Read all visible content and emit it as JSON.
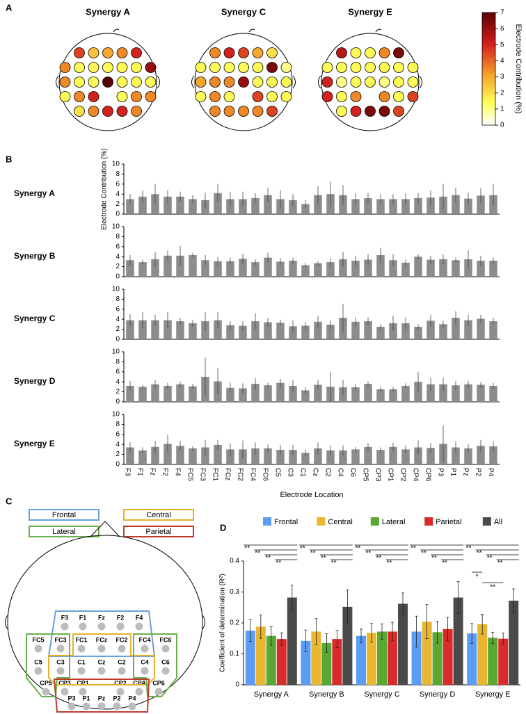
{
  "chart_data": [
    {
      "type": "topomap",
      "panel_label": "A",
      "panels": [
        {
          "title": "Synergy A",
          "values": [
            4.5,
            2.5,
            3,
            3.5,
            5,
            3.5,
            1.5,
            1.5,
            1.5,
            1.5,
            1.5,
            6,
            3.5,
            1.5,
            1.5,
            7,
            1.5,
            1.5,
            1.5,
            1.5,
            3.5,
            5,
            1.5,
            3.5,
            3.5,
            2,
            3.5,
            5,
            5,
            3.5
          ]
        },
        {
          "title": "Synergy C",
          "values": [
            3.5,
            5,
            4.5,
            3,
            2,
            1.5,
            1.5,
            1.5,
            1.5,
            1.5,
            6.5,
            1,
            3,
            3.5,
            3.5,
            6,
            1.5,
            1.5,
            1.5,
            1.5,
            3.5,
            1.5,
            4.5,
            1.5,
            1.5,
            3.5,
            3.5,
            3.5,
            3.5,
            4.5
          ]
        },
        {
          "title": "Synergy E",
          "values": [
            5.5,
            1.5,
            1.5,
            3.5,
            6.5,
            1.5,
            1.5,
            1.5,
            1.5,
            1.5,
            1.5,
            1.5,
            5,
            1,
            1.5,
            1.5,
            1,
            1.5,
            1.5,
            5,
            1.5,
            3.5,
            3.5,
            1.5,
            4.5,
            1.5,
            5,
            6.5,
            6.5,
            4.5
          ]
        }
      ],
      "clim": [
        0,
        7
      ],
      "cticks": [
        0,
        1,
        2,
        3,
        4,
        5,
        6,
        7
      ],
      "colorbar_label": "Electrode Contribution (%)"
    },
    {
      "type": "bar",
      "panel_label": "B",
      "y_label": "Electrode Contribution (%)",
      "x_label": "Electrode Location",
      "categories": [
        "F3",
        "F1",
        "Fz",
        "F2",
        "F4",
        "FC5",
        "FC3",
        "FC1",
        "FCz",
        "FC2",
        "FC4",
        "FC6",
        "C5",
        "C3",
        "C1",
        "Cz",
        "C2",
        "C4",
        "C6",
        "CP5",
        "CP3",
        "CP1",
        "CP2",
        "CP4",
        "CP6",
        "P3",
        "P1",
        "Pz",
        "P2",
        "P4"
      ],
      "color": "#8c8c8c",
      "ylim": [
        0,
        10
      ],
      "yticks": [
        0,
        2,
        4,
        6,
        8,
        10
      ],
      "panels": [
        {
          "name": "Synergy A",
          "values": [
            3,
            3.5,
            4,
            3.5,
            3.5,
            3,
            2.8,
            4.2,
            3,
            3,
            3.2,
            3.8,
            3,
            2.8,
            2,
            3.8,
            4,
            3.8,
            3,
            3.2,
            3,
            3,
            3,
            3.2,
            3.3,
            3.5,
            3.8,
            3.1,
            3.7,
            3.8
          ],
          "errors": [
            1,
            1.2,
            2,
            1.3,
            1,
            0.8,
            1.5,
            1.8,
            1.5,
            1.5,
            1,
            1.5,
            1.8,
            1.2,
            0.8,
            1.8,
            2.5,
            2,
            1.2,
            1,
            1,
            1,
            1.2,
            1,
            1.5,
            2.5,
            1.5,
            1.2,
            1.5,
            2.2
          ]
        },
        {
          "name": "Synergy B",
          "values": [
            3.3,
            2.9,
            3.5,
            4.2,
            4.2,
            4.3,
            3.3,
            3.1,
            3.1,
            3.6,
            2.9,
            3.8,
            3,
            3.2,
            2.3,
            2.7,
            2.9,
            3.5,
            3.2,
            3.4,
            4.3,
            3.3,
            2.8,
            4,
            3.4,
            3.5,
            3.3,
            3.5,
            3.2,
            3.2
          ],
          "errors": [
            1,
            0.5,
            1.5,
            1,
            2,
            0.4,
            1,
            0.8,
            0.7,
            1,
            0.6,
            1,
            0.7,
            0.6,
            0.5,
            0.4,
            0.8,
            1.5,
            1,
            1.1,
            1.5,
            1.2,
            0.6,
            0.5,
            0.8,
            1,
            0.5,
            1.8,
            1,
            0.6
          ]
        },
        {
          "name": "Synergy C",
          "values": [
            3.8,
            3.8,
            3.8,
            3.8,
            3.6,
            3.2,
            3.6,
            3.8,
            2.8,
            2.7,
            3.6,
            3.4,
            3.3,
            2.6,
            2.7,
            3.5,
            2.9,
            4.3,
            3.5,
            3.6,
            2.5,
            3.2,
            3.2,
            2.5,
            3.7,
            3,
            4.3,
            3.8,
            4.1,
            3.6
          ],
          "errors": [
            1.2,
            1.6,
            1.1,
            1.6,
            0.7,
            0.7,
            1.8,
            1.6,
            0.8,
            0.9,
            1.6,
            0.9,
            0.6,
            1.2,
            0.7,
            1.2,
            0.9,
            2.8,
            0.9,
            0.8,
            0.5,
            1.5,
            1.2,
            0.5,
            1.2,
            0.7,
            1.3,
            1.1,
            0.8,
            0.7
          ]
        },
        {
          "name": "Synergy D",
          "values": [
            3.2,
            3,
            3.5,
            3.2,
            3.5,
            3.1,
            5,
            4.1,
            2.8,
            2.7,
            3.6,
            3.3,
            3.8,
            3.2,
            2.3,
            3.4,
            3,
            2.9,
            2.9,
            3.6,
            2.5,
            2.5,
            3.2,
            4,
            3.5,
            3.5,
            3.3,
            3.5,
            3.4,
            3.2
          ],
          "errors": [
            1,
            0.4,
            0.8,
            0.6,
            0.6,
            0.5,
            3.8,
            2.6,
            1,
            1,
            1.2,
            0.5,
            0.8,
            1.2,
            0.7,
            0.9,
            3,
            1.5,
            0.6,
            0.5,
            0.6,
            0.5,
            0.5,
            2,
            1.3,
            1.3,
            0.9,
            0.7,
            0.6,
            0.6
          ]
        },
        {
          "name": "Synergy E",
          "values": [
            3.4,
            2.8,
            3.5,
            4.1,
            3.7,
            3.2,
            3.4,
            3.9,
            3,
            3,
            3.2,
            3.2,
            2.9,
            2.9,
            2.3,
            3.2,
            2.8,
            2.8,
            3,
            3.5,
            2.9,
            3.5,
            3,
            3.4,
            3.3,
            4.1,
            3.4,
            3.2,
            3.7,
            3.6
          ],
          "errors": [
            1,
            0.6,
            1.2,
            1.8,
            1,
            0.5,
            1.5,
            1,
            1.2,
            1.8,
            1.2,
            0.8,
            1,
            1,
            0.6,
            1.2,
            1,
            1,
            0.5,
            0.8,
            0.5,
            0.8,
            0.8,
            1.4,
            1,
            3.7,
            1.2,
            0.8,
            1.2,
            1
          ]
        }
      ]
    },
    {
      "type": "grouped_bar",
      "panel_label": "D",
      "y_label": "Coefficient of determination (R²)",
      "categories": [
        "Synergy A",
        "Synergy B",
        "Synergy C",
        "Synergy D",
        "Synergy E"
      ],
      "ylim": [
        0,
        0.4
      ],
      "yticks": [
        0,
        0.1,
        0.2,
        0.3,
        0.4
      ],
      "series": [
        {
          "name": "Frontal",
          "color": "#5b9cf5",
          "values": [
            0.175,
            0.142,
            0.158,
            0.172,
            0.166
          ],
          "errors": [
            0.035,
            0.035,
            0.022,
            0.05,
            0.032
          ]
        },
        {
          "name": "Central",
          "color": "#e8b630",
          "values": [
            0.188,
            0.172,
            0.168,
            0.204,
            0.196
          ],
          "errors": [
            0.038,
            0.042,
            0.03,
            0.055,
            0.032
          ]
        },
        {
          "name": "Lateral",
          "color": "#58a831",
          "values": [
            0.158,
            0.135,
            0.172,
            0.17,
            0.152
          ],
          "errors": [
            0.03,
            0.03,
            0.025,
            0.035,
            0.018
          ]
        },
        {
          "name": "Parietal",
          "color": "#d92b2b",
          "values": [
            0.148,
            0.148,
            0.172,
            0.18,
            0.149
          ],
          "errors": [
            0.02,
            0.028,
            0.03,
            0.038,
            0.018
          ]
        },
        {
          "name": "All",
          "color": "#4a4a4a",
          "values": [
            0.282,
            0.252,
            0.262,
            0.282,
            0.272
          ],
          "errors": [
            0.04,
            0.055,
            0.035,
            0.052,
            0.038
          ]
        }
      ],
      "significance": [
        [
          {
            "from": 0,
            "to": 4,
            "label": "**"
          },
          {
            "from": 1,
            "to": 4,
            "label": "**"
          },
          {
            "from": 2,
            "to": 4,
            "label": "**"
          },
          {
            "from": 3,
            "to": 4,
            "label": "**"
          }
        ],
        [
          {
            "from": 0,
            "to": 4,
            "label": "**"
          },
          {
            "from": 1,
            "to": 4,
            "label": "**"
          },
          {
            "from": 2,
            "to": 4,
            "label": "**"
          },
          {
            "from": 3,
            "to": 4,
            "label": "**"
          }
        ],
        [
          {
            "from": 0,
            "to": 4,
            "label": "**"
          },
          {
            "from": 1,
            "to": 4,
            "label": "**"
          },
          {
            "from": 2,
            "to": 4,
            "label": "**"
          },
          {
            "from": 3,
            "to": 4,
            "label": "**"
          }
        ],
        [
          {
            "from": 0,
            "to": 4,
            "label": "**"
          },
          {
            "from": 1,
            "to": 4,
            "label": "**"
          },
          {
            "from": 2,
            "to": 4,
            "label": "**"
          },
          {
            "from": 3,
            "to": 4,
            "label": "**"
          }
        ],
        [
          {
            "from": 0,
            "to": 4,
            "label": "**"
          },
          {
            "from": 1,
            "to": 4,
            "label": "**"
          },
          {
            "from": 2,
            "to": 4,
            "label": "**"
          },
          {
            "from": 3,
            "to": 4,
            "label": "**"
          },
          {
            "from": 0,
            "to": 1,
            "label": "*"
          },
          {
            "from": 1,
            "to": 3,
            "label": "**"
          }
        ]
      ]
    }
  ],
  "diagram": {
    "panel_label": "C",
    "regions": [
      {
        "label": "Frontal",
        "color": "#6a9fe0"
      },
      {
        "label": "Central",
        "color": "#e6b02e"
      },
      {
        "label": "Lateral",
        "color": "#6ab04c"
      },
      {
        "label": "Parietal",
        "color": "#c0392b"
      }
    ]
  }
}
